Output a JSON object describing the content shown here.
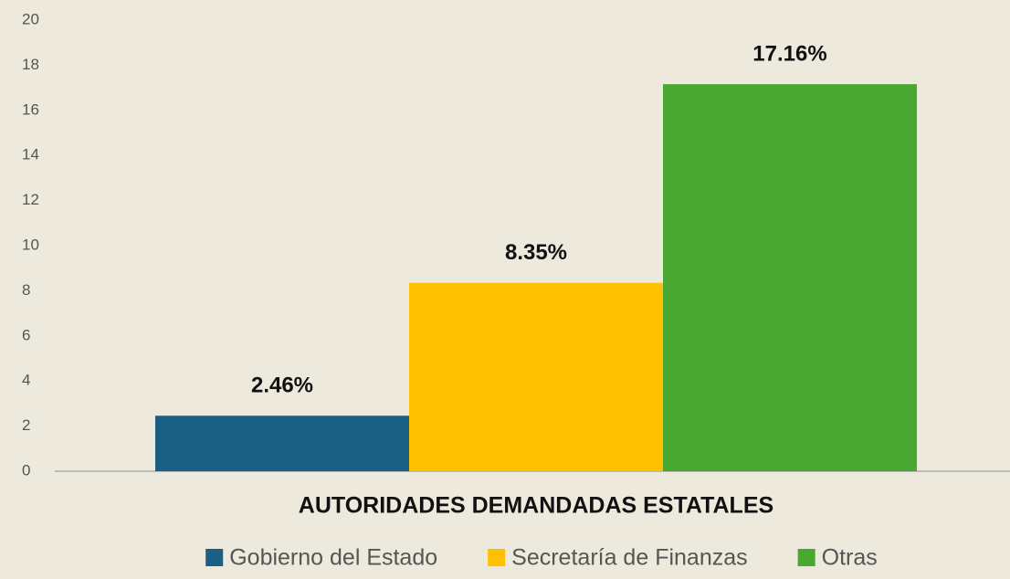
{
  "chart_data": {
    "type": "bar",
    "categories": [
      "AUTORIDADES DEMANDADAS ESTATALES"
    ],
    "series": [
      {
        "name": "Gobierno del Estado",
        "color": "#1a6084",
        "values": [
          2.46
        ],
        "value_labels": [
          "2.46%"
        ]
      },
      {
        "name": "Secretaría de Finanzas",
        "color": "#ffc000",
        "values": [
          8.35
        ],
        "value_labels": [
          "8.35%"
        ]
      },
      {
        "name": "Otras",
        "color": "#4aa832",
        "values": [
          17.16
        ],
        "value_labels": [
          "17.16%"
        ]
      }
    ],
    "ylim": [
      0,
      20
    ],
    "yticks": [
      0,
      2,
      4,
      6,
      8,
      10,
      12,
      14,
      16,
      18,
      20
    ],
    "grid": false,
    "legend": "bottom"
  }
}
